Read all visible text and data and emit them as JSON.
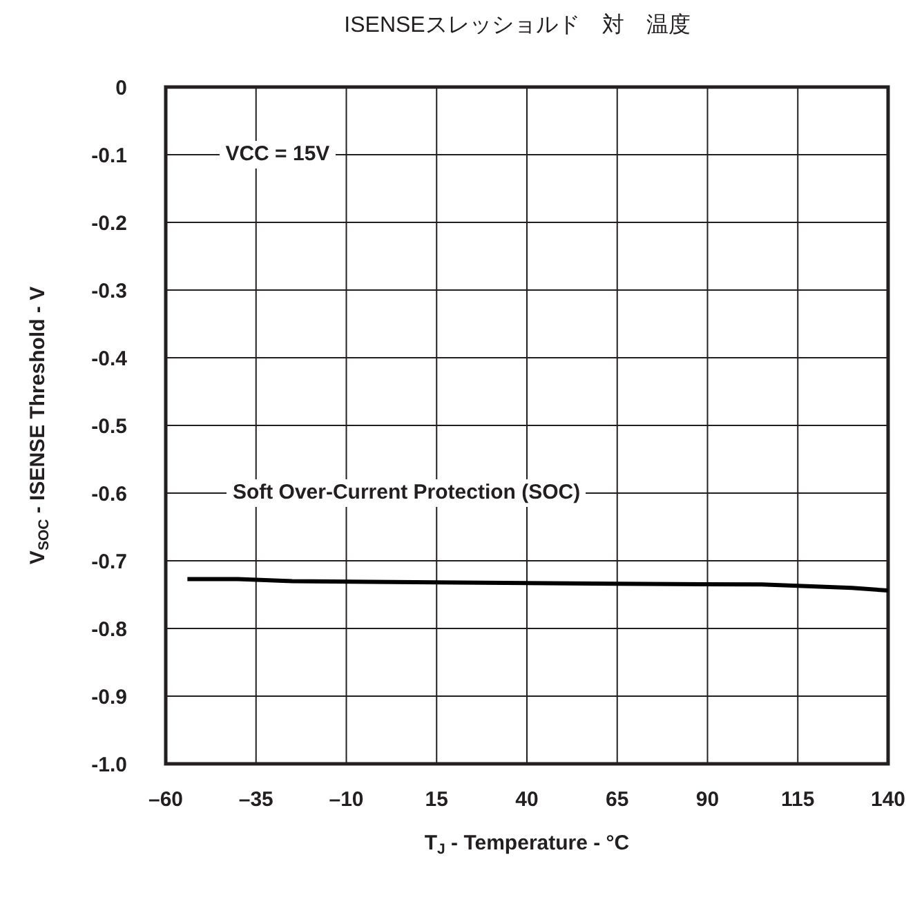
{
  "chart_data": {
    "type": "line",
    "title": "ISENSEスレッショルド　対　温度",
    "xlabel": "T$_{J}$ - Temperature - °C",
    "ylabel": "V$_{SOC}$ - ISENSE Threshold - V",
    "annotations": [
      "VCC = 15V",
      "Soft Over-Current Protection (SOC)"
    ],
    "x": [
      -54,
      -40,
      -25,
      15,
      65,
      105,
      130,
      140
    ],
    "series": [
      {
        "color": "#000000",
        "values": [
          -0.727,
          -0.727,
          -0.73,
          -0.732,
          -0.734,
          -0.735,
          -0.74,
          -0.744
        ]
      }
    ],
    "xlim": [
      -60,
      140
    ],
    "xticks": [
      {
        "value": -60,
        "label": "–60"
      },
      {
        "value": -35,
        "label": "–35"
      },
      {
        "value": -10,
        "label": "–10"
      },
      15,
      40,
      65,
      90,
      115,
      140
    ],
    "ylim": [
      -1.0,
      0
    ],
    "yticks": [
      {
        "value": -1.0,
        "label": "-1.0"
      },
      -0.9,
      -0.8,
      -0.7,
      -0.6,
      -0.5,
      -0.4,
      -0.3,
      -0.2,
      -0.1,
      0
    ],
    "grid": true,
    "line_style": "solid",
    "marker": "none"
  }
}
